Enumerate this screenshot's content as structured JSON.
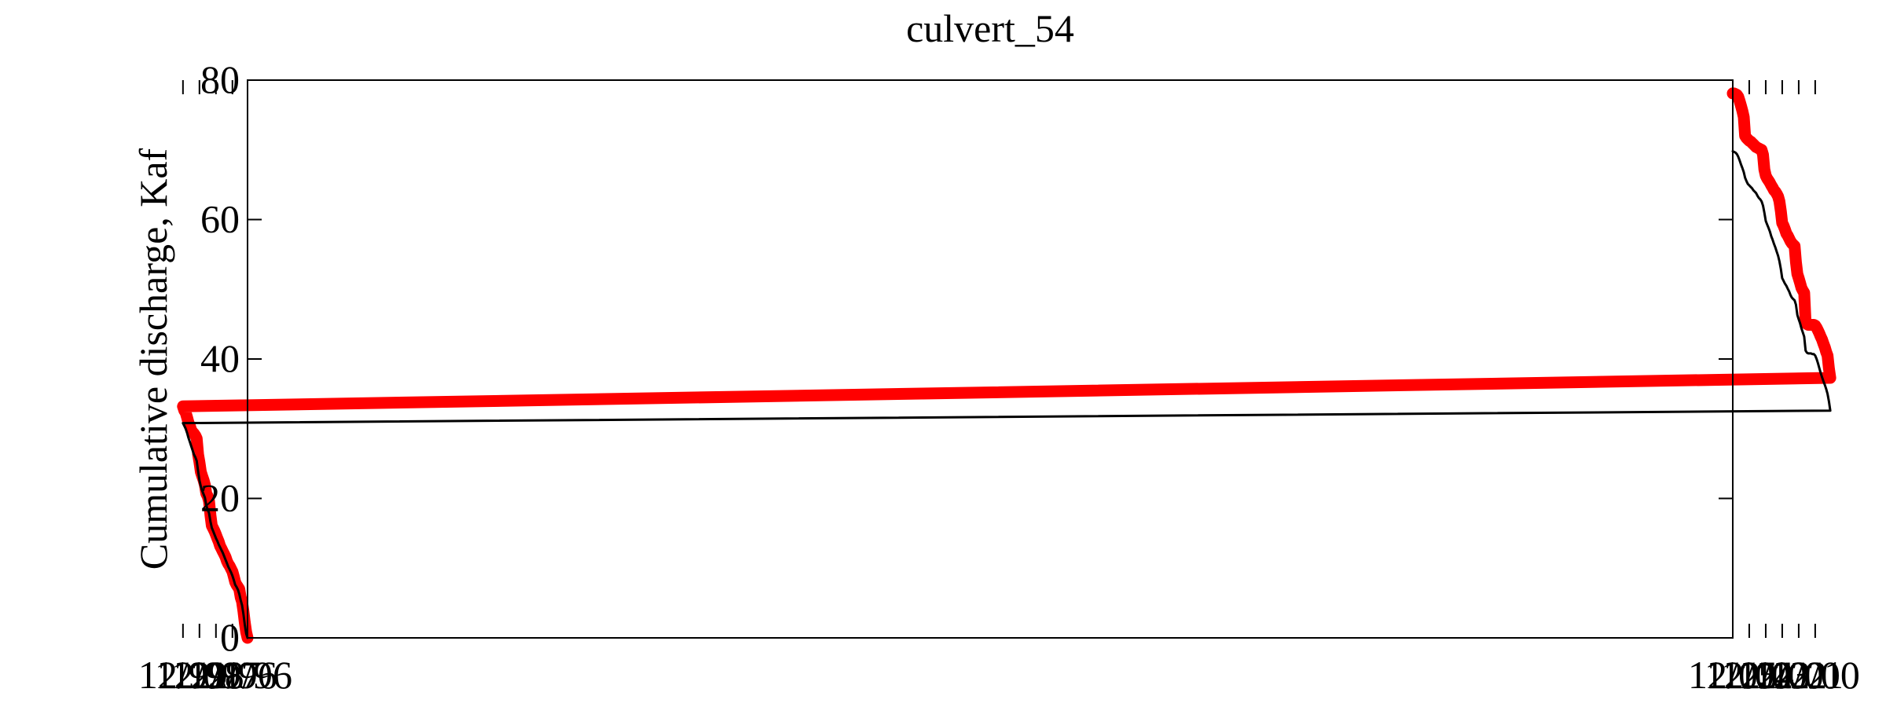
{
  "chart_data": {
    "type": "line",
    "title": "culvert_54",
    "xlabel": "",
    "ylabel": "Cumulative discharge, Kaf",
    "xlim": [
      "01/96",
      "12/05"
    ],
    "ylim": [
      0,
      80
    ],
    "grid": false,
    "legend": null,
    "x_ticks": [
      "01/96",
      "12/96",
      "12/97",
      "12/98",
      "12/99",
      "12/00",
      "12/01",
      "12/02",
      "12/03",
      "12/04",
      "12/05"
    ],
    "y_ticks": [
      0,
      20,
      40,
      60,
      80
    ],
    "series": [
      {
        "color": "#ff0000",
        "line_weight": "thick",
        "points": [
          [
            "01/96",
            0
          ],
          [
            "02/96",
            0.8
          ],
          [
            "03/96",
            2.2
          ],
          [
            "04/96",
            3.8
          ],
          [
            "05/96",
            5.2
          ],
          [
            "06/96",
            5.8
          ],
          [
            "07/96",
            7.0
          ],
          [
            "08/96",
            7.3
          ],
          [
            "09/96",
            7.6
          ],
          [
            "10/96",
            8.0
          ],
          [
            "11/96",
            8.8
          ],
          [
            "12/96",
            9.5
          ],
          [
            "01/97",
            9.9
          ],
          [
            "02/97",
            10.3
          ],
          [
            "03/97",
            10.6
          ],
          [
            "04/97",
            11.0
          ],
          [
            "05/97",
            11.6
          ],
          [
            "06/97",
            12.0
          ],
          [
            "07/97",
            12.4
          ],
          [
            "08/97",
            12.8
          ],
          [
            "09/97",
            13.2
          ],
          [
            "10/97",
            13.8
          ],
          [
            "11/97",
            14.3
          ],
          [
            "12/97",
            14.8
          ],
          [
            "01/98",
            15.3
          ],
          [
            "02/98",
            15.7
          ],
          [
            "03/98",
            16.1
          ],
          [
            "04/98",
            17.6
          ],
          [
            "05/98",
            19.6
          ],
          [
            "06/98",
            20.3
          ],
          [
            "07/98",
            20.7
          ],
          [
            "08/98",
            21.9
          ],
          [
            "09/98",
            22.6
          ],
          [
            "10/98",
            23.2
          ],
          [
            "11/98",
            23.8
          ],
          [
            "12/98",
            25.2
          ],
          [
            "01/99",
            26.3
          ],
          [
            "02/99",
            28.6
          ],
          [
            "03/99",
            29.0
          ],
          [
            "04/99",
            29.3
          ],
          [
            "05/99",
            29.5
          ],
          [
            "06/99",
            29.8
          ],
          [
            "07/99",
            30.4
          ],
          [
            "08/99",
            30.9
          ],
          [
            "09/99",
            31.6
          ],
          [
            "10/99",
            32.3
          ],
          [
            "11/99",
            32.6
          ],
          [
            "12/99",
            33.2
          ],
          [
            "01/00",
            37.3
          ],
          [
            "02/00",
            38.6
          ],
          [
            "03/00",
            40.5
          ],
          [
            "04/00",
            41.0
          ],
          [
            "05/00",
            41.7
          ],
          [
            "06/00",
            42.2
          ],
          [
            "07/00",
            42.8
          ],
          [
            "08/00",
            43.2
          ],
          [
            "09/00",
            43.7
          ],
          [
            "10/00",
            44.1
          ],
          [
            "11/00",
            44.5
          ],
          [
            "12/00",
            44.8
          ],
          [
            "01/01",
            44.9
          ],
          [
            "02/01",
            44.9
          ],
          [
            "03/01",
            44.9
          ],
          [
            "04/01",
            44.9
          ],
          [
            "05/01",
            44.9
          ],
          [
            "06/01",
            45.0
          ],
          [
            "07/01",
            45.2
          ],
          [
            "08/01",
            49.5
          ],
          [
            "09/01",
            49.8
          ],
          [
            "10/01",
            50.2
          ],
          [
            "11/01",
            50.9
          ],
          [
            "12/01",
            51.6
          ],
          [
            "01/02",
            52.2
          ],
          [
            "02/02",
            53.9
          ],
          [
            "03/02",
            56.2
          ],
          [
            "04/02",
            56.4
          ],
          [
            "05/02",
            56.6
          ],
          [
            "06/02",
            56.9
          ],
          [
            "07/02",
            57.3
          ],
          [
            "08/02",
            57.7
          ],
          [
            "09/02",
            58.0
          ],
          [
            "10/02",
            58.6
          ],
          [
            "11/02",
            59.1
          ],
          [
            "12/02",
            59.5
          ],
          [
            "01/03",
            61.2
          ],
          [
            "02/03",
            62.6
          ],
          [
            "03/03",
            63.3
          ],
          [
            "04/03",
            63.7
          ],
          [
            "05/03",
            64.0
          ],
          [
            "06/03",
            64.2
          ],
          [
            "07/03",
            64.6
          ],
          [
            "08/03",
            64.9
          ],
          [
            "09/03",
            65.3
          ],
          [
            "10/03",
            65.6
          ],
          [
            "11/03",
            65.9
          ],
          [
            "12/03",
            66.3
          ],
          [
            "01/04",
            67.2
          ],
          [
            "02/04",
            69.3
          ],
          [
            "03/04",
            70.0
          ],
          [
            "04/04",
            70.1
          ],
          [
            "05/04",
            70.2
          ],
          [
            "06/04",
            70.3
          ],
          [
            "07/04",
            70.4
          ],
          [
            "08/04",
            70.6
          ],
          [
            "09/04",
            70.8
          ],
          [
            "10/04",
            71.0
          ],
          [
            "11/04",
            71.2
          ],
          [
            "12/04",
            71.3
          ],
          [
            "01/05",
            71.5
          ],
          [
            "02/05",
            71.7
          ],
          [
            "03/05",
            72.0
          ],
          [
            "04/05",
            74.7
          ],
          [
            "05/05",
            75.6
          ],
          [
            "06/05",
            76.3
          ],
          [
            "07/05",
            77.0
          ],
          [
            "08/05",
            77.6
          ],
          [
            "09/05",
            77.9
          ],
          [
            "10/05",
            78.0
          ],
          [
            "11/05",
            78.1
          ],
          [
            "12/05",
            78.1
          ]
        ]
      },
      {
        "color": "#000000",
        "line_weight": "thin",
        "points": [
          [
            "01/96",
            0
          ],
          [
            "02/96",
            0.6
          ],
          [
            "03/96",
            1.9
          ],
          [
            "04/96",
            3.4
          ],
          [
            "05/96",
            4.7
          ],
          [
            "06/96",
            5.4
          ],
          [
            "07/96",
            6.3
          ],
          [
            "08/96",
            6.9
          ],
          [
            "09/96",
            7.3
          ],
          [
            "10/96",
            7.6
          ],
          [
            "11/96",
            8.3
          ],
          [
            "12/96",
            8.9
          ],
          [
            "01/97",
            9.4
          ],
          [
            "02/97",
            9.8
          ],
          [
            "03/97",
            10.2
          ],
          [
            "04/97",
            10.7
          ],
          [
            "05/97",
            11.2
          ],
          [
            "06/97",
            11.7
          ],
          [
            "07/97",
            12.2
          ],
          [
            "08/97",
            12.6
          ],
          [
            "09/97",
            13.0
          ],
          [
            "10/97",
            13.4
          ],
          [
            "11/97",
            13.9
          ],
          [
            "12/97",
            14.3
          ],
          [
            "01/98",
            14.8
          ],
          [
            "02/98",
            15.3
          ],
          [
            "03/98",
            15.8
          ],
          [
            "04/98",
            16.7
          ],
          [
            "05/98",
            17.9
          ],
          [
            "06/98",
            18.4
          ],
          [
            "07/98",
            19.0
          ],
          [
            "08/98",
            20.1
          ],
          [
            "09/98",
            20.6
          ],
          [
            "10/98",
            21.1
          ],
          [
            "11/98",
            21.7
          ],
          [
            "12/98",
            22.6
          ],
          [
            "01/99",
            23.9
          ],
          [
            "02/99",
            25.4
          ],
          [
            "03/99",
            25.9
          ],
          [
            "04/99",
            26.3
          ],
          [
            "05/99",
            26.9
          ],
          [
            "06/99",
            27.5
          ],
          [
            "07/99",
            28.1
          ],
          [
            "08/99",
            28.7
          ],
          [
            "09/99",
            29.4
          ],
          [
            "10/99",
            30.0
          ],
          [
            "11/99",
            30.4
          ],
          [
            "12/99",
            30.8
          ],
          [
            "01/00",
            32.6
          ],
          [
            "02/00",
            33.9
          ],
          [
            "03/00",
            35.0
          ],
          [
            "04/00",
            35.7
          ],
          [
            "05/00",
            36.3
          ],
          [
            "06/00",
            36.8
          ],
          [
            "07/00",
            37.4
          ],
          [
            "08/00",
            38.0
          ],
          [
            "09/00",
            38.7
          ],
          [
            "10/00",
            39.4
          ],
          [
            "11/00",
            40.0
          ],
          [
            "12/00",
            40.5
          ],
          [
            "01/01",
            40.7
          ],
          [
            "02/01",
            40.7
          ],
          [
            "03/01",
            40.8
          ],
          [
            "04/01",
            40.8
          ],
          [
            "05/01",
            40.8
          ],
          [
            "06/01",
            40.9
          ],
          [
            "07/01",
            41.2
          ],
          [
            "08/01",
            43.2
          ],
          [
            "09/01",
            43.8
          ],
          [
            "10/01",
            44.4
          ],
          [
            "11/01",
            45.1
          ],
          [
            "12/01",
            45.7
          ],
          [
            "01/02",
            46.3
          ],
          [
            "02/02",
            47.8
          ],
          [
            "03/02",
            48.4
          ],
          [
            "04/02",
            48.6
          ],
          [
            "05/02",
            48.8
          ],
          [
            "06/02",
            49.2
          ],
          [
            "07/02",
            49.7
          ],
          [
            "08/02",
            50.1
          ],
          [
            "09/02",
            50.5
          ],
          [
            "10/02",
            50.8
          ],
          [
            "11/02",
            51.2
          ],
          [
            "12/02",
            51.6
          ],
          [
            "01/03",
            52.9
          ],
          [
            "02/03",
            54.0
          ],
          [
            "03/03",
            54.8
          ],
          [
            "04/03",
            55.4
          ],
          [
            "05/03",
            56.0
          ],
          [
            "06/03",
            56.5
          ],
          [
            "07/03",
            57.1
          ],
          [
            "08/03",
            57.6
          ],
          [
            "09/03",
            58.3
          ],
          [
            "10/03",
            58.8
          ],
          [
            "11/03",
            59.3
          ],
          [
            "12/03",
            59.8
          ],
          [
            "01/04",
            61.0
          ],
          [
            "02/04",
            62.0
          ],
          [
            "03/04",
            62.6
          ],
          [
            "04/04",
            62.9
          ],
          [
            "05/04",
            63.1
          ],
          [
            "06/04",
            63.4
          ],
          [
            "07/04",
            63.8
          ],
          [
            "08/04",
            64.0
          ],
          [
            "09/04",
            64.2
          ],
          [
            "10/04",
            64.5
          ],
          [
            "11/04",
            64.7
          ],
          [
            "12/04",
            64.9
          ],
          [
            "01/05",
            65.1
          ],
          [
            "02/05",
            65.5
          ],
          [
            "03/05",
            66.0
          ],
          [
            "04/05",
            66.8
          ],
          [
            "05/05",
            67.4
          ],
          [
            "06/05",
            67.9
          ],
          [
            "07/05",
            68.5
          ],
          [
            "08/05",
            69.0
          ],
          [
            "09/05",
            69.4
          ],
          [
            "10/05",
            69.6
          ],
          [
            "11/05",
            69.7
          ],
          [
            "12/05",
            69.8
          ]
        ]
      }
    ]
  }
}
